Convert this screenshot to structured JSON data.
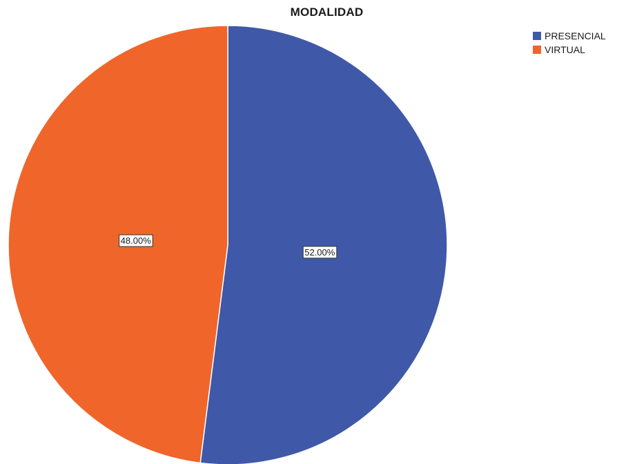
{
  "chart_data": {
    "type": "pie",
    "title": "MODALIDAD",
    "categories": [
      "PRESENCIAL",
      "VIRTUAL"
    ],
    "values": [
      52.0,
      48.0
    ],
    "data_labels": [
      "52.00%",
      "48.00%"
    ],
    "colors": [
      "#3f59a8",
      "#f0652a"
    ],
    "legend": "top-right",
    "start": "top, clockwise"
  }
}
